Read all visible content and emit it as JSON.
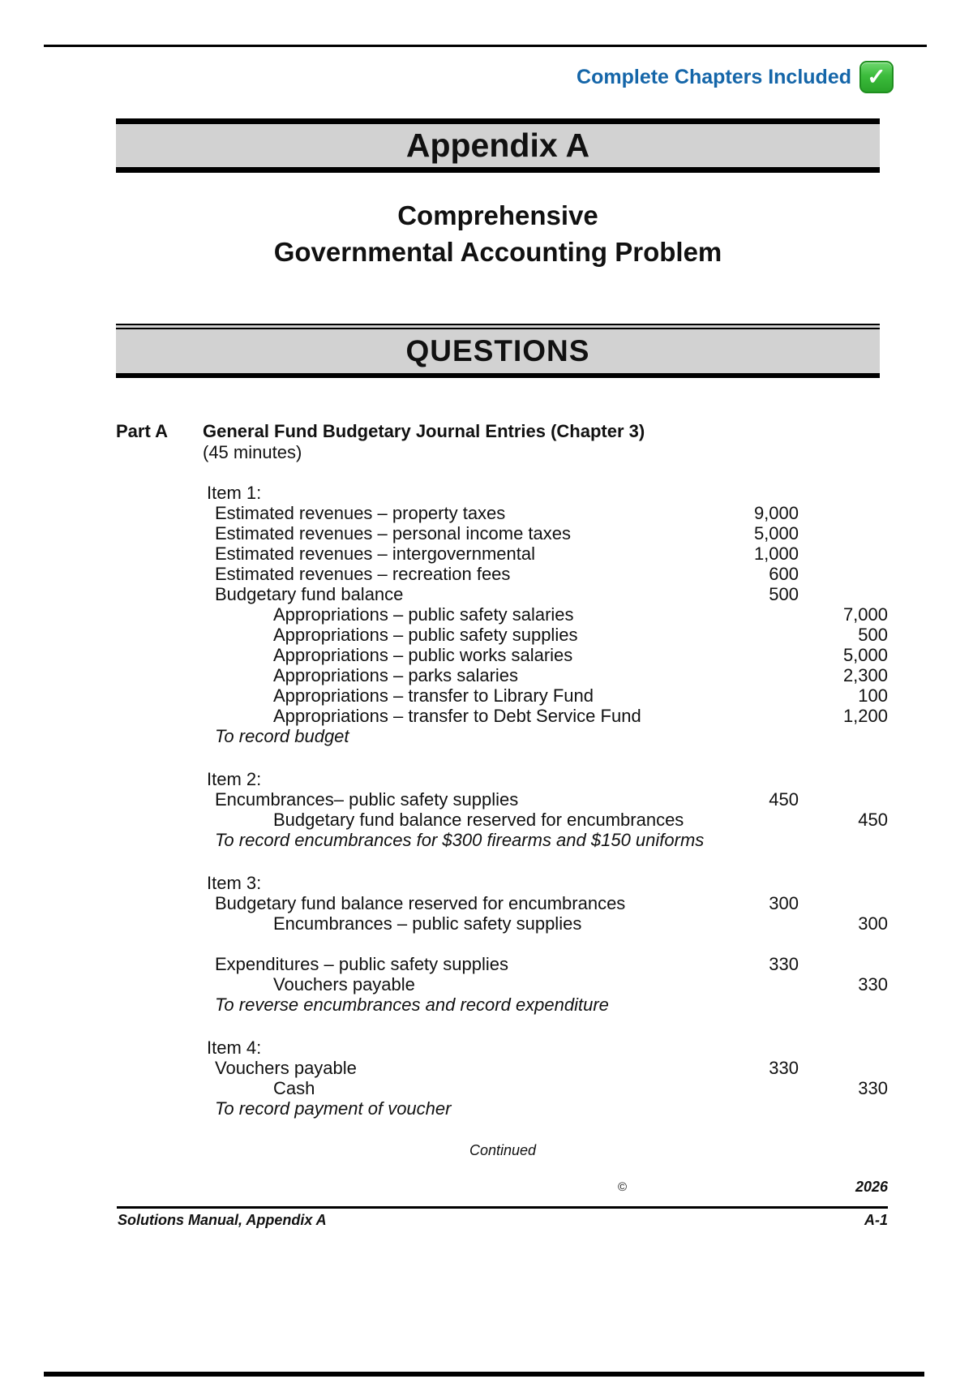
{
  "banner": {
    "label": "Complete Chapters Included",
    "check": "✓",
    "label_color": "#1566a9",
    "check_color": "#3cbc3c"
  },
  "header": {
    "appendix": "Appendix A",
    "title_line1": "Comprehensive",
    "title_line2": "Governmental Accounting Problem",
    "section": "QUESTIONS"
  },
  "part": {
    "label": "Part A",
    "title": "General Fund Budgetary Journal Entries (Chapter 3)",
    "duration": "(45 minutes)"
  },
  "items": [
    {
      "label": "Item 1:",
      "groups": [
        {
          "rows": [
            {
              "account": "Estimated revenues – property taxes",
              "debit": "9,000",
              "credit": ""
            },
            {
              "account": "Estimated revenues – personal income taxes",
              "debit": "5,000",
              "credit": ""
            },
            {
              "account": "Estimated revenues – intergovernmental",
              "debit": "1,000",
              "credit": ""
            },
            {
              "account": "Estimated revenues – recreation fees",
              "debit": "600",
              "credit": ""
            },
            {
              "account": "Budgetary fund balance",
              "debit": "500",
              "credit": ""
            },
            {
              "account": "Appropriations – public safety salaries",
              "debit": "",
              "credit": "7,000"
            },
            {
              "account": "Appropriations – public safety supplies",
              "debit": "",
              "credit": "500"
            },
            {
              "account": "Appropriations – public works salaries",
              "debit": "",
              "credit": "5,000"
            },
            {
              "account": "Appropriations – parks salaries",
              "debit": "",
              "credit": "2,300"
            },
            {
              "account": "Appropriations – transfer to Library Fund",
              "debit": "",
              "credit": "100"
            },
            {
              "account": "Appropriations – transfer to Debt Service Fund",
              "debit": "",
              "credit": "1,200"
            }
          ],
          "note": "To record budget"
        }
      ]
    },
    {
      "label": "Item 2:",
      "groups": [
        {
          "rows": [
            {
              "account": "Encumbrances– public safety supplies",
              "debit": "450",
              "credit": ""
            },
            {
              "account": "Budgetary fund balance reserved for encumbrances",
              "debit": "",
              "credit": "450"
            }
          ],
          "note": "To record encumbrances for $300 firearms and $150 uniforms"
        }
      ]
    },
    {
      "label": "Item 3:",
      "groups": [
        {
          "rows": [
            {
              "account": "Budgetary fund balance reserved for encumbrances",
              "debit": "300",
              "credit": ""
            },
            {
              "account": "Encumbrances – public safety supplies",
              "debit": "",
              "credit": "300"
            }
          ],
          "note": ""
        },
        {
          "rows": [
            {
              "account": "Expenditures – public safety supplies",
              "debit": "330",
              "credit": ""
            },
            {
              "account": "Vouchers payable",
              "debit": "",
              "credit": "330"
            }
          ],
          "note": "To reverse encumbrances and record expenditure"
        }
      ]
    },
    {
      "label": "Item 4:",
      "groups": [
        {
          "rows": [
            {
              "account": "Vouchers payable",
              "debit": "330",
              "credit": ""
            },
            {
              "account": "Cash",
              "debit": "",
              "credit": "330"
            }
          ],
          "note": "To record payment of voucher"
        }
      ]
    }
  ],
  "footer": {
    "continued": "Continued",
    "copyright": "©",
    "year": "2026",
    "manual": "Solutions Manual, Appendix A",
    "page": "A-1"
  }
}
